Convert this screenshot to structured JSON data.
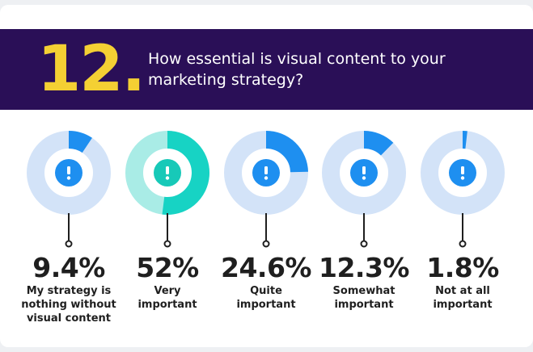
{
  "header": {
    "number": "12.",
    "question_lines": [
      "How essential is visual content to your",
      "marketing strategy?"
    ]
  },
  "colors": {
    "banner": "#2a0f57",
    "number": "#f4d033",
    "ring_track": "#d3e3f8",
    "ring_value": "#1e8ff0",
    "icon": "#1e8ff0",
    "highlight_track": "#a9ece6",
    "highlight_value": "#17d3c4",
    "highlight_icon": "#17c9b8"
  },
  "chart_data": {
    "type": "pie",
    "title": "How essential is visual content to your marketing strategy?",
    "categories": [
      "My strategy is nothing without visual content",
      "Very important",
      "Quite important",
      "Somewhat important",
      "Not at all important"
    ],
    "values": [
      9.4,
      52,
      24.6,
      12.3,
      1.8
    ],
    "unit": "%",
    "items": [
      {
        "value": 9.4,
        "pct_label": "9.4%",
        "label_lines": [
          "My strategy is",
          "nothing without",
          "visual content"
        ],
        "highlight": false,
        "icon": "exclamation-icon"
      },
      {
        "value": 52,
        "pct_label": "52%",
        "label_lines": [
          "Very",
          "important"
        ],
        "highlight": true,
        "icon": "exclamation-icon"
      },
      {
        "value": 24.6,
        "pct_label": "24.6%",
        "label_lines": [
          "Quite",
          "important"
        ],
        "highlight": false,
        "icon": "exclamation-icon"
      },
      {
        "value": 12.3,
        "pct_label": "12.3%",
        "label_lines": [
          "Somewhat",
          "important"
        ],
        "highlight": false,
        "icon": "exclamation-icon"
      },
      {
        "value": 1.8,
        "pct_label": "1.8%",
        "label_lines": [
          "Not at all",
          "important"
        ],
        "highlight": false,
        "icon": "exclamation-icon"
      }
    ]
  }
}
